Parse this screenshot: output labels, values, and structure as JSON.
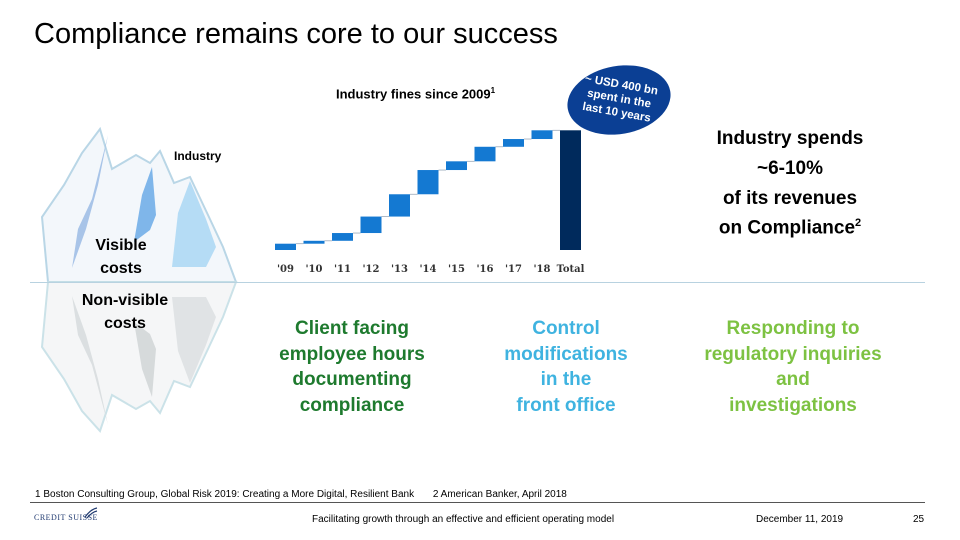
{
  "slide": {
    "title": "Compliance remains core to our success",
    "page_number": "25",
    "date": "December 11, 2019",
    "footer_text": "Facilitating growth through an effective and efficient operating model",
    "logo_text": "CREDIT SUISSE"
  },
  "iceberg": {
    "industry_label": "Industry",
    "visible_label": [
      "Visible",
      "costs"
    ],
    "nonvisible_label": [
      "Non-visible",
      "costs"
    ]
  },
  "badge": {
    "lines": [
      "~ USD 400 bn",
      "spent in the",
      "last 10 years"
    ]
  },
  "spend_statement": {
    "lines": [
      "Industry spends",
      "~6-10%",
      "of its revenues",
      "on Compliance"
    ],
    "footnote_ref": "2"
  },
  "impacts": [
    {
      "lines": [
        "Client facing",
        "employee hours",
        "documenting",
        "compliance"
      ],
      "color": "#1e7a2e"
    },
    {
      "lines": [
        "Control",
        "modifications",
        "in the",
        "front office"
      ],
      "color": "#3fb3e0"
    },
    {
      "lines": [
        "Responding to",
        "regulatory inquiries",
        "and",
        "investigations"
      ],
      "color": "#7dc242"
    }
  ],
  "footnotes": [
    "1 Boston Consulting Group, Global Risk 2019: Creating a More Digital, Resilient Bank",
    "2 American Banker, April 2018"
  ],
  "chart_data": {
    "type": "waterfall",
    "title": "Industry fines since 2009",
    "title_footnote_ref": "1",
    "categories": [
      "'09",
      "'10",
      "'11",
      "'12",
      "'13",
      "'14",
      "'15",
      "'16",
      "'17",
      "'18",
      "Total"
    ],
    "increments": [
      13,
      6,
      16,
      34,
      46,
      50,
      18,
      30,
      16,
      18
    ],
    "total": 247,
    "unit": "USD bn (approx.)",
    "ylim": [
      0,
      260
    ],
    "colors": {
      "bar": "#1479d2",
      "total": "#002a5c",
      "connector": "#9aa8b8"
    },
    "grid": false,
    "xlabel": "",
    "ylabel": ""
  }
}
